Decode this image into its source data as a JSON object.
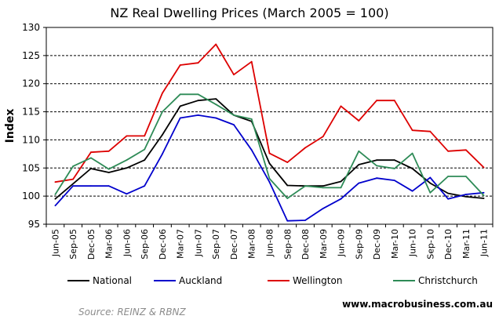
{
  "chart_data": {
    "type": "line",
    "title": "NZ Real Dwelling Prices (March 2005  = 100)",
    "ylabel": "Index",
    "xlabel": "",
    "ylim": [
      95,
      130
    ],
    "yticks": [
      95,
      100,
      105,
      110,
      115,
      120,
      125,
      130
    ],
    "grid": "horizontal dashed",
    "legend_position": "bottom",
    "categories": [
      "Jun-05",
      "Sep-05",
      "Dec-05",
      "Mar-06",
      "Jun-06",
      "Sep-06",
      "Dec-06",
      "Mar-07",
      "Jun-07",
      "Sep-07",
      "Dec-07",
      "Mar-08",
      "Jun-08",
      "Sep-08",
      "Dec-08",
      "Mar-09",
      "Jun-09",
      "Sep-09",
      "Dec-09",
      "Mar-10",
      "Jun-10",
      "Sep-10",
      "Dec-10",
      "Mar-11",
      "Jun-11"
    ],
    "series": [
      {
        "name": "National",
        "color": "#000000",
        "values": [
          99.5,
          102.2,
          104.9,
          104.2,
          105.0,
          106.4,
          110.9,
          116.0,
          117.0,
          117.3,
          114.4,
          113.3,
          105.8,
          101.9,
          101.8,
          101.8,
          102.6,
          105.6,
          106.4,
          106.4,
          104.9,
          102.3,
          100.5,
          99.9,
          99.6
        ]
      },
      {
        "name": "Auckland",
        "color": "#0000cc",
        "values": [
          98.3,
          101.8,
          101.8,
          101.8,
          100.4,
          101.8,
          107.5,
          113.9,
          114.4,
          113.9,
          112.7,
          108.2,
          102.5,
          95.6,
          95.7,
          97.8,
          99.5,
          102.3,
          103.2,
          102.8,
          100.9,
          103.3,
          99.5,
          100.3,
          100.6
        ]
      },
      {
        "name": "Wellington",
        "color": "#dd0000",
        "values": [
          102.5,
          103.0,
          107.8,
          108.0,
          110.7,
          110.7,
          118.3,
          123.3,
          123.7,
          127.0,
          121.6,
          123.9,
          107.6,
          106.0,
          108.6,
          110.6,
          116.0,
          113.4,
          117.0,
          117.0,
          111.7,
          111.5,
          108.0,
          108.2,
          105.1
        ]
      },
      {
        "name": "Christchurch",
        "color": "#2e8b57",
        "values": [
          100.3,
          105.3,
          106.8,
          104.8,
          106.4,
          108.3,
          115.0,
          118.1,
          118.1,
          116.3,
          114.4,
          113.7,
          103.1,
          99.6,
          101.8,
          101.5,
          101.5,
          108.0,
          105.4,
          104.9,
          107.6,
          100.6,
          103.5,
          103.5,
          100.1
        ]
      }
    ]
  },
  "footer": {
    "source": "Source: REINZ & RBNZ",
    "website": "www.macrobusiness.com.au"
  }
}
